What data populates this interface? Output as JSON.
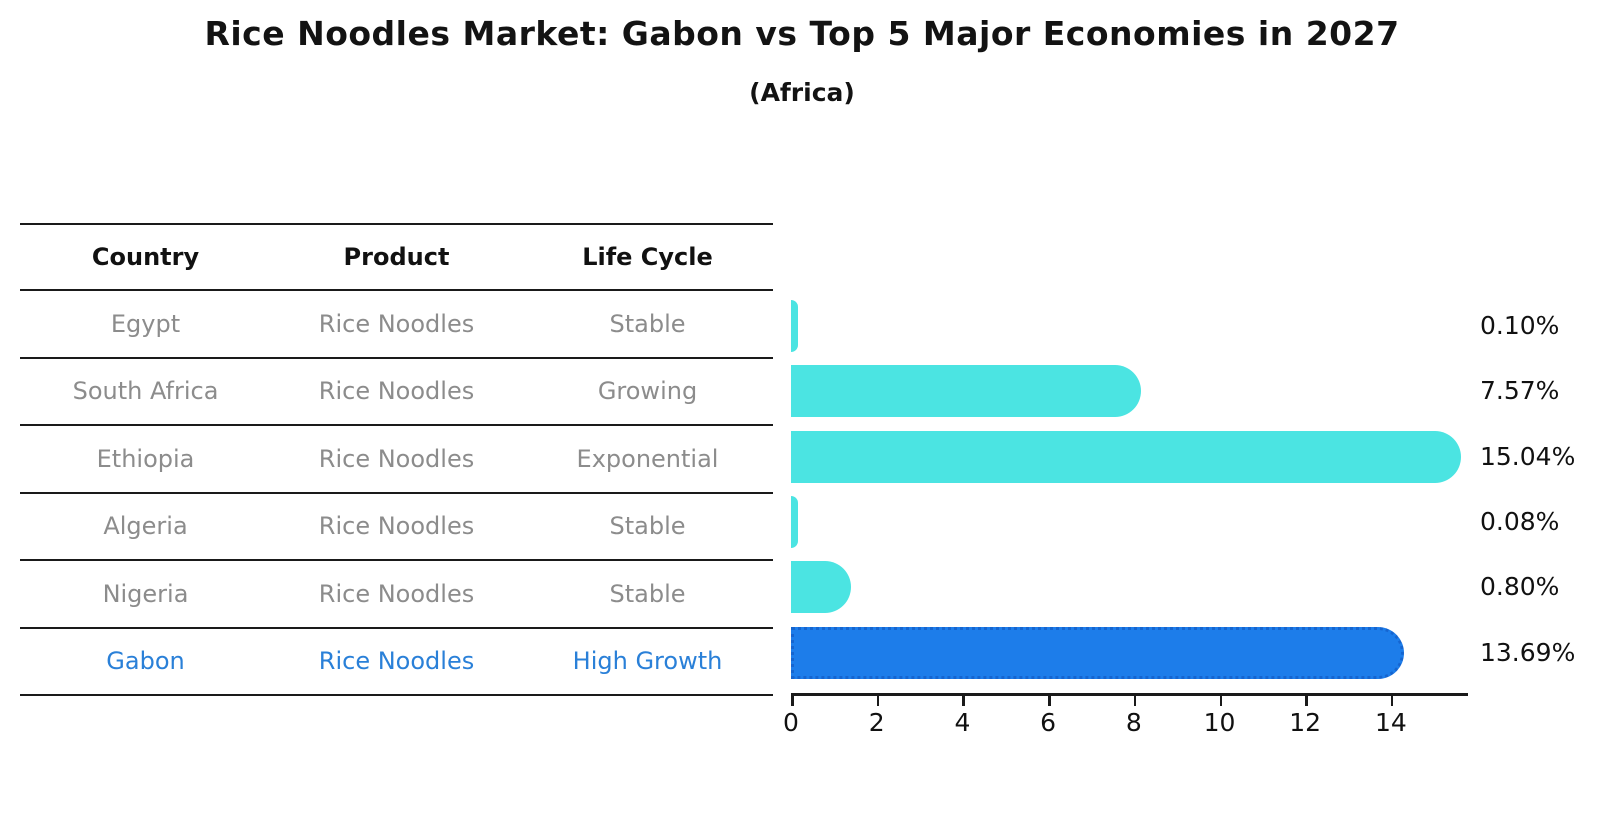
{
  "chart_data": {
    "type": "bar",
    "orientation": "horizontal",
    "title": "Rice Noodles Market: Gabon vs Top 5 Major Economies in 2027",
    "subtitle": "(Africa)",
    "categories": [
      "Egypt",
      "South Africa",
      "Ethiopia",
      "Algeria",
      "Nigeria",
      "Gabon"
    ],
    "values": [
      0.1,
      7.57,
      15.04,
      0.08,
      0.8,
      13.69
    ],
    "value_labels": [
      "0.10%",
      "7.57%",
      "15.04%",
      "0.08%",
      "0.80%",
      "13.69%"
    ],
    "xticks": [
      "0",
      "2",
      "4",
      "6",
      "8",
      "10",
      "12",
      "14"
    ],
    "xlim": [
      0,
      15.8
    ],
    "ylabel": "",
    "xlabel": "",
    "grid": false,
    "legend": false,
    "bar_color": "#4BE4E2",
    "highlight_color": "#1D7DEA",
    "highlight_edge_color": "#1565D0",
    "highlight_index": 5
  },
  "table": {
    "headers": [
      "Country",
      "Product",
      "Life Cycle"
    ],
    "rows": [
      [
        "Egypt",
        "Rice Noodles",
        "Stable"
      ],
      [
        "South Africa",
        "Rice Noodles",
        "Growing"
      ],
      [
        "Ethiopia",
        "Rice Noodles",
        "Exponential"
      ],
      [
        "Algeria",
        "Rice Noodles",
        "Stable"
      ],
      [
        "Nigeria",
        "Rice Noodles",
        "Stable"
      ],
      [
        "Gabon",
        "Rice Noodles",
        "High Growth"
      ]
    ],
    "text_color": "#8C8C8C",
    "highlight_text_color": "#2A80D8",
    "highlight_row_index": 5
  }
}
